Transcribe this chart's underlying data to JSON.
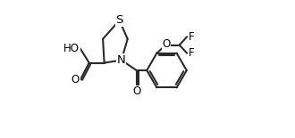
{
  "bg_color": "#ffffff",
  "line_color": "#2a2a2a",
  "line_width": 1.5,
  "font_size": 8.5,
  "figsize": [
    3.3,
    1.55
  ],
  "dpi": 100,
  "xlim": [
    0.0,
    1.0
  ],
  "ylim": [
    0.0,
    1.0
  ]
}
